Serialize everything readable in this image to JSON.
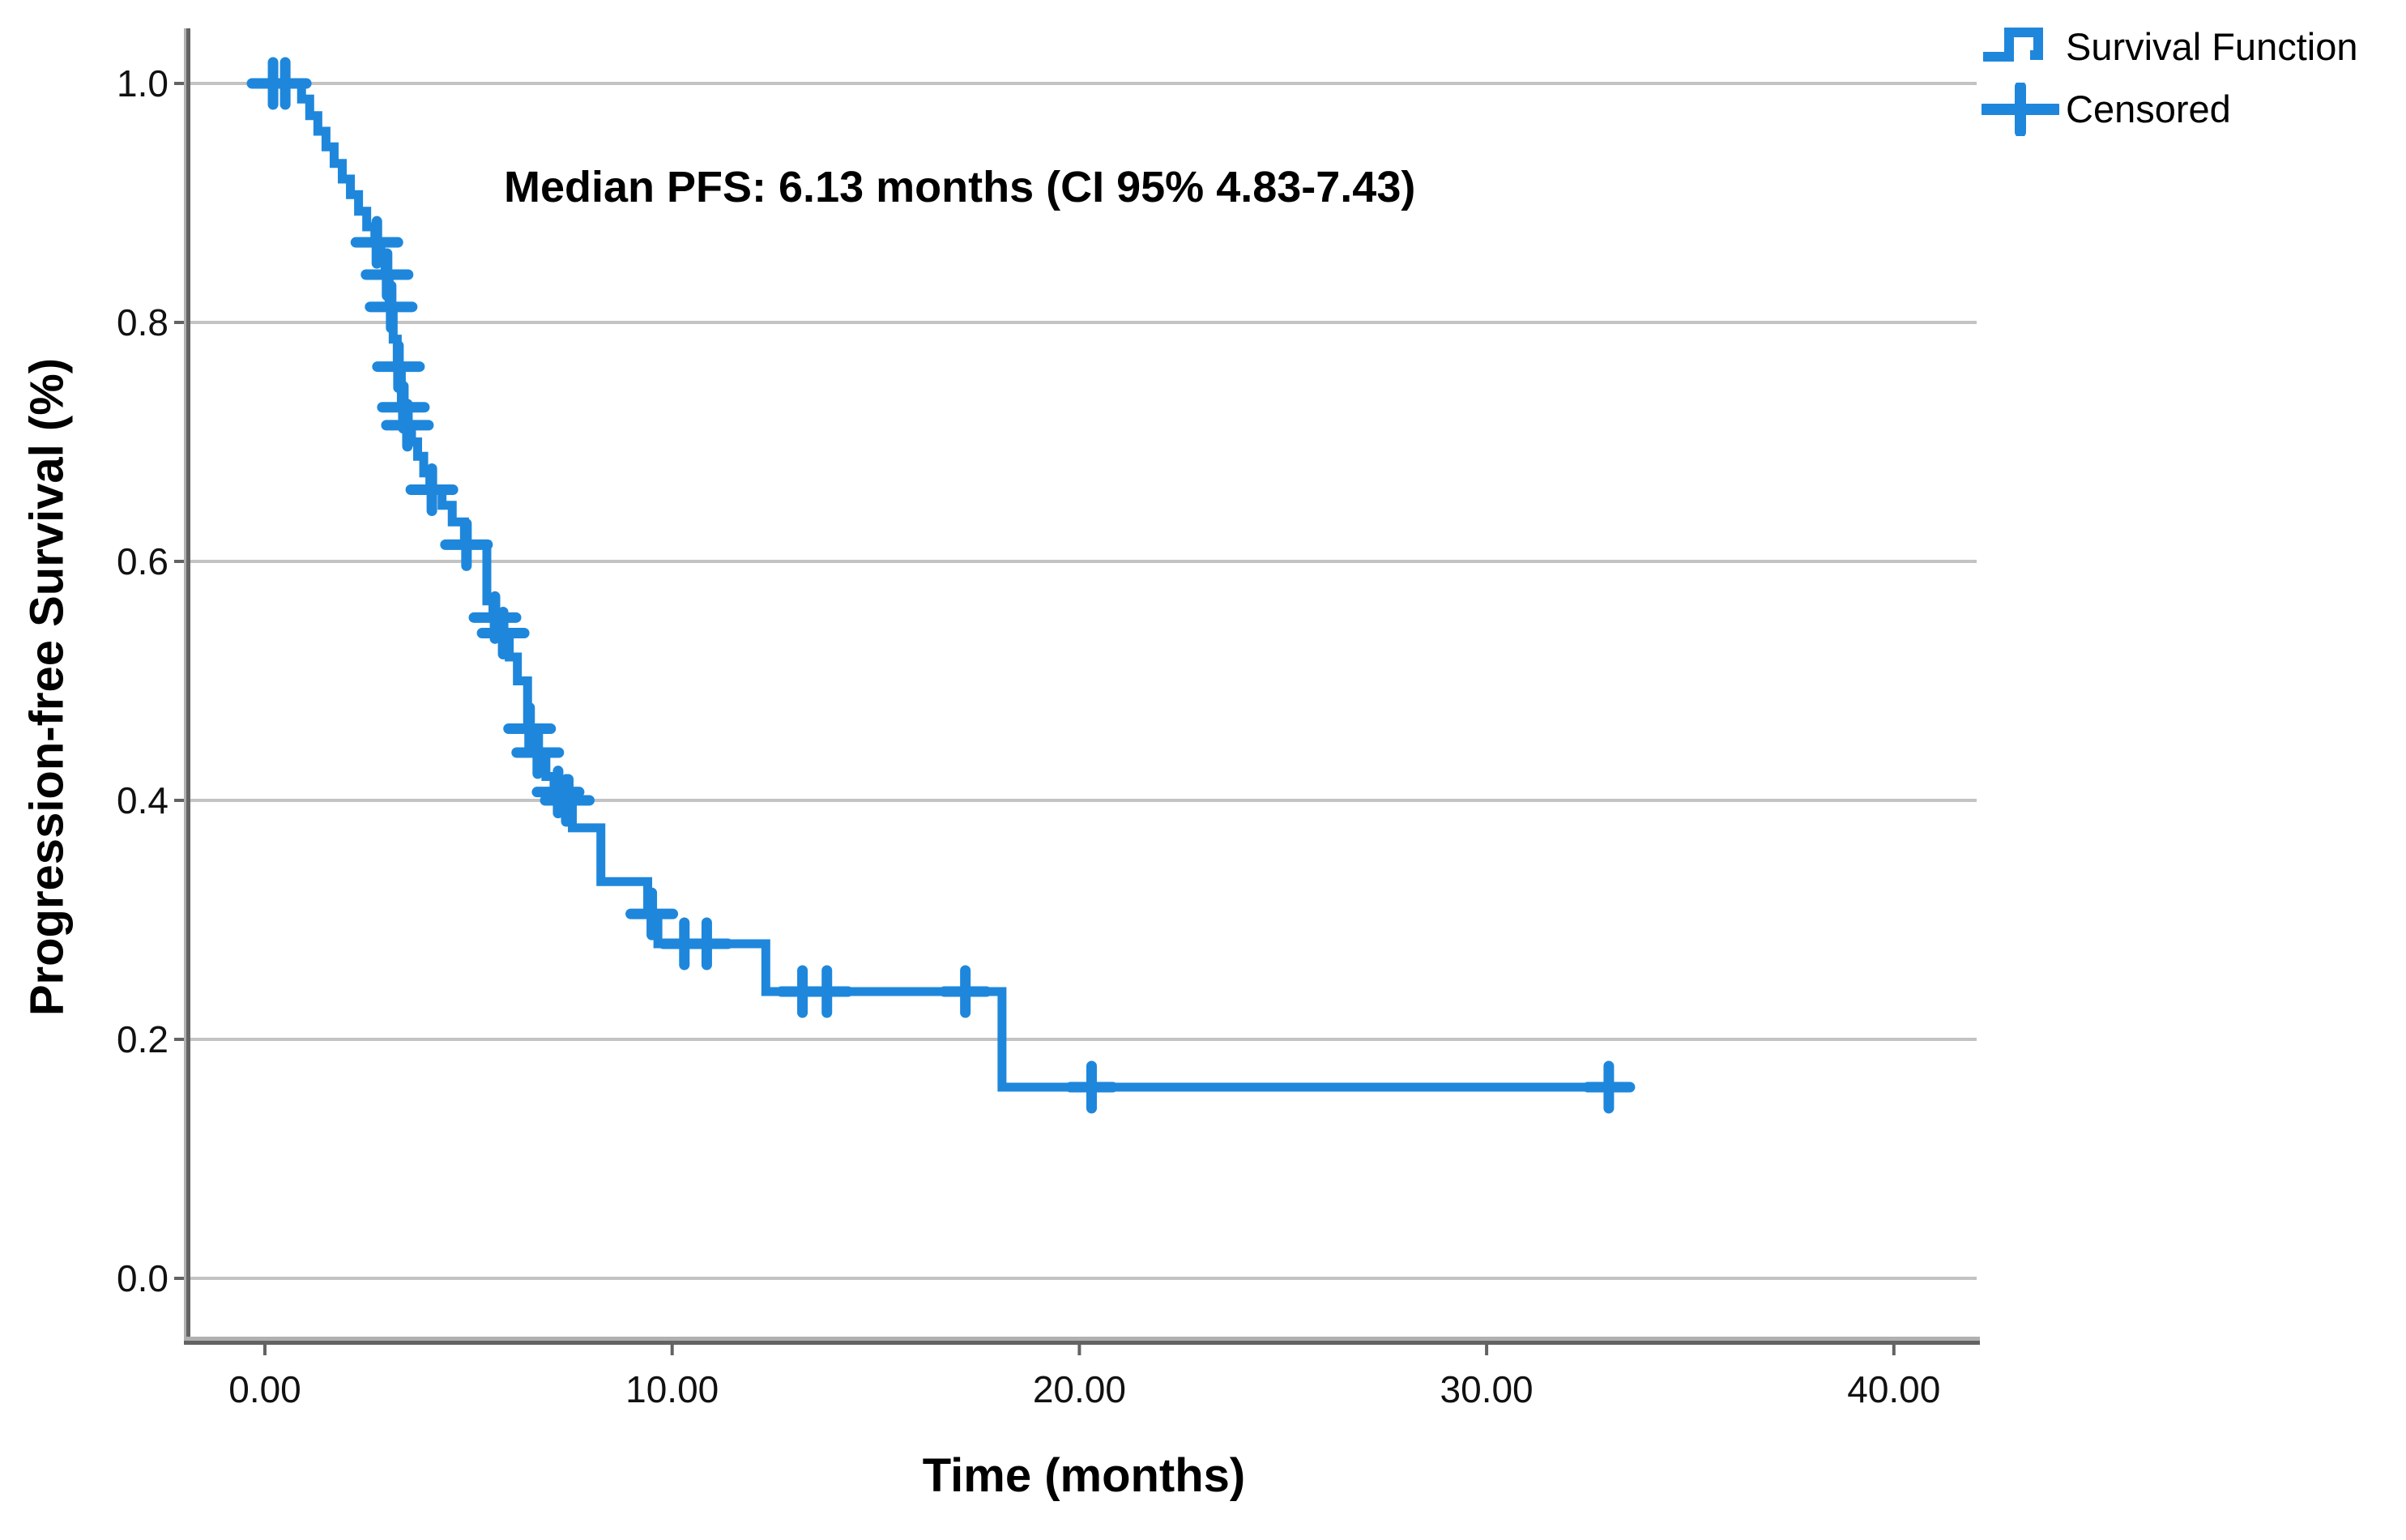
{
  "chart_data": {
    "type": "line",
    "subtype": "kaplan-meier-step-function",
    "title": "",
    "annotation": "Median PFS: 6.13 months (CI 95% 4.83-7.43)",
    "xlabel": "Time (months)",
    "ylabel": "Progression-free Survival (%)",
    "xlim": [
      0,
      40
    ],
    "ylim": [
      0.0,
      1.0
    ],
    "grid": "horizontal",
    "legend_position": "top-right",
    "x_ticks": [
      {
        "value": 0,
        "label": "0.00"
      },
      {
        "value": 10,
        "label": "10.00"
      },
      {
        "value": 20,
        "label": "20.00"
      },
      {
        "value": 30,
        "label": "30.00"
      },
      {
        "value": 40,
        "label": "40.00"
      }
    ],
    "y_ticks": [
      {
        "value": 0.0,
        "label": "0.0"
      },
      {
        "value": 0.2,
        "label": "0.2"
      },
      {
        "value": 0.4,
        "label": "0.4"
      },
      {
        "value": 0.6,
        "label": "0.6"
      },
      {
        "value": 0.8,
        "label": "0.8"
      },
      {
        "value": 1.0,
        "label": "1.0"
      }
    ],
    "legend_items": [
      {
        "label": "Survival Function",
        "marker": "step-line"
      },
      {
        "label": "Censored",
        "marker": "plus"
      }
    ],
    "series": [
      {
        "name": "Survival Function",
        "color": "#1e87dc",
        "end_time": 33.3,
        "steps": [
          [
            0.0,
            1.0
          ],
          [
            0.9,
            0.987
          ],
          [
            1.1,
            0.973
          ],
          [
            1.3,
            0.96
          ],
          [
            1.5,
            0.947
          ],
          [
            1.7,
            0.933
          ],
          [
            1.9,
            0.92
          ],
          [
            2.1,
            0.907
          ],
          [
            2.3,
            0.893
          ],
          [
            2.5,
            0.88
          ],
          [
            2.7,
            0.867
          ],
          [
            2.85,
            0.853
          ],
          [
            2.95,
            0.84
          ],
          [
            3.05,
            0.813
          ],
          [
            3.15,
            0.786
          ],
          [
            3.25,
            0.763
          ],
          [
            3.35,
            0.729
          ],
          [
            3.45,
            0.714
          ],
          [
            3.6,
            0.7
          ],
          [
            3.75,
            0.688
          ],
          [
            3.9,
            0.674
          ],
          [
            4.05,
            0.66
          ],
          [
            4.35,
            0.647
          ],
          [
            4.6,
            0.633
          ],
          [
            4.9,
            0.614
          ],
          [
            5.45,
            0.567
          ],
          [
            5.6,
            0.553
          ],
          [
            5.75,
            0.54
          ],
          [
            6.0,
            0.52
          ],
          [
            6.2,
            0.5
          ],
          [
            6.45,
            0.46
          ],
          [
            6.6,
            0.44
          ],
          [
            6.9,
            0.42
          ],
          [
            7.1,
            0.407
          ],
          [
            7.3,
            0.4
          ],
          [
            7.55,
            0.377
          ],
          [
            8.25,
            0.332
          ],
          [
            9.4,
            0.305
          ],
          [
            9.65,
            0.28
          ],
          [
            12.3,
            0.24
          ],
          [
            18.1,
            0.16
          ]
        ]
      }
    ],
    "censored_points": [
      [
        0.2,
        1.0
      ],
      [
        0.5,
        1.0
      ],
      [
        2.75,
        0.867
      ],
      [
        3.0,
        0.84
      ],
      [
        3.1,
        0.813
      ],
      [
        3.28,
        0.763
      ],
      [
        3.4,
        0.729
      ],
      [
        3.5,
        0.714
      ],
      [
        4.1,
        0.66
      ],
      [
        4.95,
        0.614
      ],
      [
        5.65,
        0.553
      ],
      [
        5.85,
        0.54
      ],
      [
        6.5,
        0.46
      ],
      [
        6.7,
        0.44
      ],
      [
        7.2,
        0.407
      ],
      [
        7.4,
        0.4
      ],
      [
        7.45,
        0.4
      ],
      [
        9.5,
        0.305
      ],
      [
        10.3,
        0.28
      ],
      [
        10.85,
        0.28
      ],
      [
        13.2,
        0.24
      ],
      [
        13.8,
        0.24
      ],
      [
        17.2,
        0.24
      ],
      [
        20.3,
        0.16
      ],
      [
        33.0,
        0.16
      ]
    ],
    "colors": {
      "curve": "#1e87dc",
      "gridline": "#c3c3c3",
      "axis_dark": "#636363",
      "axis_light": "#b0b0b0",
      "text": "#000000",
      "background": "#ffffff"
    }
  }
}
